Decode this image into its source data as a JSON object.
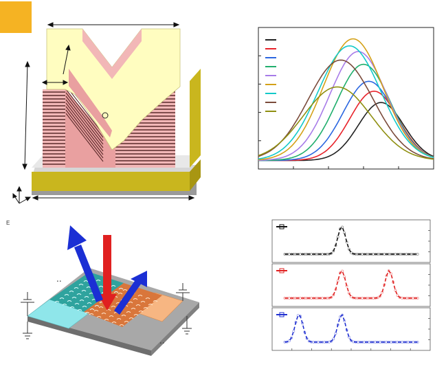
{
  "badge": {
    "color": "#F5B323"
  },
  "panel_top_left": {
    "description_items": [
      "metamaterial-block",
      "layer-stack",
      "substrate",
      "dimension-arrows",
      "axes"
    ],
    "colors": {
      "top": "#FFFDC0",
      "layer_dark": "#5A2A2A",
      "layer_light": "#F2B7B7",
      "substrate_gold": "#C9B61E",
      "base_gray": "#CCCCCC"
    }
  },
  "panel_bottom_left": {
    "small_text": "E",
    "colors": {
      "arrow_red": "#E02020",
      "arrow_blue": "#1B2FD4",
      "pad_cyan": "#8FE6EA",
      "pad_orange": "#F7B682",
      "board": "#A8A8A8"
    }
  },
  "chart_data": [
    {
      "type": "line",
      "title": "",
      "xlabel": "",
      "ylabel": "",
      "legend_position": "top-left",
      "legend_entries": 9,
      "series": [
        {
          "color": "#222222",
          "peak_x": 0.7,
          "peak_y": 0.47
        },
        {
          "color": "#E8222A",
          "peak_x": 0.66,
          "peak_y": 0.55
        },
        {
          "color": "#2A66E0",
          "peak_x": 0.63,
          "peak_y": 0.62
        },
        {
          "color": "#1FAE6C",
          "peak_x": 0.6,
          "peak_y": 0.74
        },
        {
          "color": "#A77BE8",
          "peak_x": 0.57,
          "peak_y": 0.83
        },
        {
          "color": "#D4A117",
          "peak_x": 0.54,
          "peak_y": 0.92
        },
        {
          "color": "#12C9C9",
          "peak_x": 0.52,
          "peak_y": 0.87
        },
        {
          "color": "#7A4A3A",
          "peak_x": 0.47,
          "peak_y": 0.77
        },
        {
          "color": "#8F8F10",
          "peak_x": 0.45,
          "peak_y": 0.58
        }
      ]
    },
    {
      "type": "line",
      "title": "",
      "subplots": [
        {
          "color": "#111111",
          "peaks": [
            0.44
          ]
        },
        {
          "color": "#E02020",
          "peaks": [
            0.44,
            0.74
          ]
        },
        {
          "color": "#1F2FD0",
          "peaks": [
            0.17,
            0.44
          ]
        }
      ]
    }
  ]
}
